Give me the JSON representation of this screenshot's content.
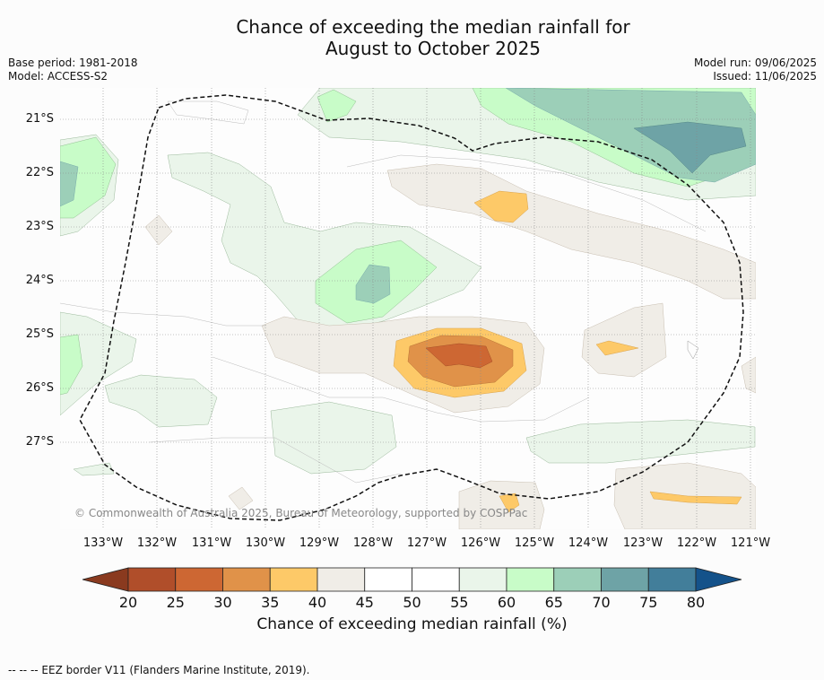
{
  "title_line1": "Chance of exceeding the median rainfall for",
  "title_line2": "August to October 2025",
  "base_period": "Base period: 1981-2018",
  "model": "Model: ACCESS-S2",
  "model_run": "Model run: 09/06/2025",
  "issued": "Issued: 11/06/2025",
  "lat_labels": [
    "21°S",
    "22°S",
    "23°S",
    "24°S",
    "25°S",
    "26°S",
    "27°S"
  ],
  "lon_labels": [
    "133°W",
    "132°W",
    "131°W",
    "130°W",
    "129°W",
    "128°W",
    "127°W",
    "126°W",
    "125°W",
    "124°W",
    "123°W",
    "122°W",
    "121°W"
  ],
  "copyright": "© Commonwealth of Australia 2025, Bureau of Meteorology, supported by COSPPac",
  "colorbar": {
    "ticks": [
      "20",
      "25",
      "30",
      "35",
      "40",
      "45",
      "50",
      "55",
      "60",
      "65",
      "70",
      "75",
      "80"
    ],
    "label": "Chance of exceeding median rainfall (%)",
    "colors": [
      "#8a3a1f",
      "#b04e2a",
      "#cd6733",
      "#e09249",
      "#fdc968",
      "#f0ede7",
      "#ffffff",
      "#ffffff",
      "#eaf5ea",
      "#c8fcc8",
      "#9ccfb8",
      "#6ea3a6",
      "#427e9a",
      "#14528a"
    ]
  },
  "footnote": "-- -- -- EEZ border V11 (Flanders Marine Institute, 2019)."
}
